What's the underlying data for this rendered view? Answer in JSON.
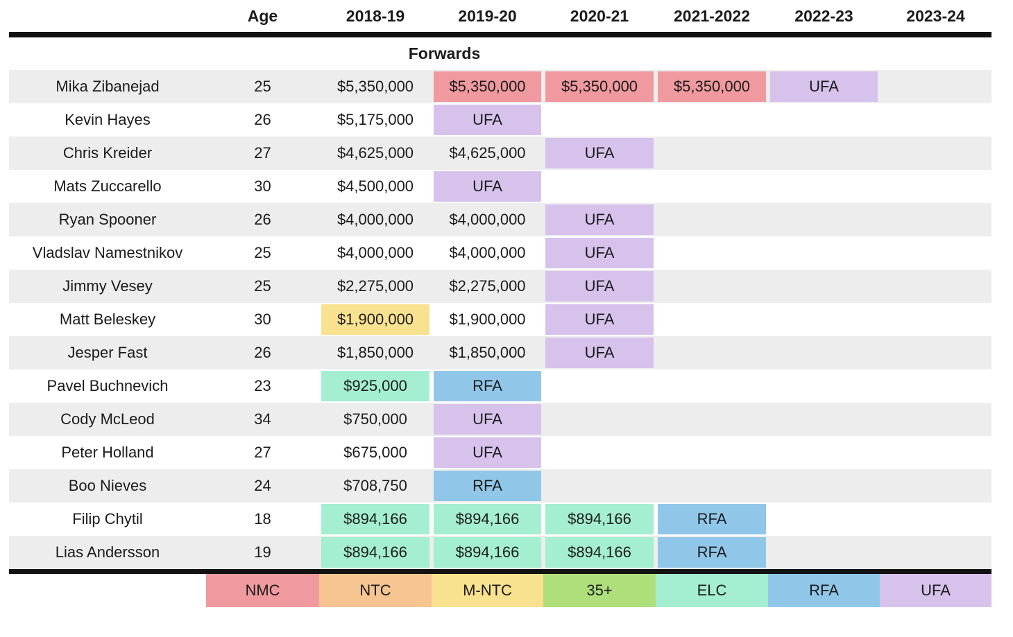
{
  "section": {
    "label": "Forwards"
  },
  "header": {
    "columns": [
      "",
      "Age",
      "2018-19",
      "2019-20",
      "2020-21",
      "2021-2022",
      "2022-23",
      "2023-24"
    ]
  },
  "colors": {
    "nmc": "#f09a9f",
    "ntc": "#f6c591",
    "mntc": "#f9e28f",
    "plus35": "#afdf7b",
    "elc": "#a4eed1",
    "rfa": "#90c7e9",
    "ufa": "#d7c2ec",
    "row_alt": "#ededed",
    "line": "#121212"
  },
  "legend": [
    {
      "label": "NMC",
      "type": "nmc"
    },
    {
      "label": "NTC",
      "type": "ntc"
    },
    {
      "label": "M-NTC",
      "type": "mntc"
    },
    {
      "label": "35+",
      "type": "plus35"
    },
    {
      "label": "ELC",
      "type": "elc"
    },
    {
      "label": "RFA",
      "type": "rfa"
    },
    {
      "label": "UFA",
      "type": "ufa"
    }
  ],
  "players": [
    {
      "name": "Mika Zibanejad",
      "age": "25",
      "years": [
        {
          "text": "$5,350,000"
        },
        {
          "text": "$5,350,000",
          "type": "nmc"
        },
        {
          "text": "$5,350,000",
          "type": "nmc"
        },
        {
          "text": "$5,350,000",
          "type": "nmc"
        },
        {
          "text": "UFA",
          "type": "ufa"
        },
        {}
      ]
    },
    {
      "name": "Kevin Hayes",
      "age": "26",
      "years": [
        {
          "text": "$5,175,000"
        },
        {
          "text": "UFA",
          "type": "ufa"
        },
        {},
        {},
        {},
        {}
      ]
    },
    {
      "name": "Chris Kreider",
      "age": "27",
      "years": [
        {
          "text": "$4,625,000"
        },
        {
          "text": "$4,625,000"
        },
        {
          "text": "UFA",
          "type": "ufa"
        },
        {},
        {},
        {}
      ]
    },
    {
      "name": "Mats Zuccarello",
      "age": "30",
      "years": [
        {
          "text": "$4,500,000"
        },
        {
          "text": "UFA",
          "type": "ufa"
        },
        {},
        {},
        {},
        {}
      ]
    },
    {
      "name": "Ryan Spooner",
      "age": "26",
      "years": [
        {
          "text": "$4,000,000"
        },
        {
          "text": "$4,000,000"
        },
        {
          "text": "UFA",
          "type": "ufa"
        },
        {},
        {},
        {}
      ]
    },
    {
      "name": "Vladslav Namestnikov",
      "age": "25",
      "years": [
        {
          "text": "$4,000,000"
        },
        {
          "text": "$4,000,000"
        },
        {
          "text": "UFA",
          "type": "ufa"
        },
        {},
        {},
        {}
      ]
    },
    {
      "name": "Jimmy Vesey",
      "age": "25",
      "years": [
        {
          "text": "$2,275,000"
        },
        {
          "text": "$2,275,000"
        },
        {
          "text": "UFA",
          "type": "ufa"
        },
        {},
        {},
        {}
      ]
    },
    {
      "name": "Matt Beleskey",
      "age": "30",
      "years": [
        {
          "text": "$1,900,000",
          "type": "mntc"
        },
        {
          "text": "$1,900,000"
        },
        {
          "text": "UFA",
          "type": "ufa"
        },
        {},
        {},
        {}
      ]
    },
    {
      "name": "Jesper Fast",
      "age": "26",
      "years": [
        {
          "text": "$1,850,000"
        },
        {
          "text": "$1,850,000"
        },
        {
          "text": "UFA",
          "type": "ufa"
        },
        {},
        {},
        {}
      ]
    },
    {
      "name": "Pavel Buchnevich",
      "age": "23",
      "years": [
        {
          "text": "$925,000",
          "type": "elc"
        },
        {
          "text": "RFA",
          "type": "rfa"
        },
        {},
        {},
        {},
        {}
      ]
    },
    {
      "name": "Cody McLeod",
      "age": "34",
      "years": [
        {
          "text": "$750,000"
        },
        {
          "text": "UFA",
          "type": "ufa"
        },
        {},
        {},
        {},
        {}
      ]
    },
    {
      "name": "Peter Holland",
      "age": "27",
      "years": [
        {
          "text": "$675,000"
        },
        {
          "text": "UFA",
          "type": "ufa"
        },
        {},
        {},
        {},
        {}
      ]
    },
    {
      "name": "Boo Nieves",
      "age": "24",
      "years": [
        {
          "text": "$708,750"
        },
        {
          "text": "RFA",
          "type": "rfa"
        },
        {},
        {},
        {},
        {}
      ]
    },
    {
      "name": "Filip Chytil",
      "age": "18",
      "years": [
        {
          "text": "$894,166",
          "type": "elc"
        },
        {
          "text": "$894,166",
          "type": "elc"
        },
        {
          "text": "$894,166",
          "type": "elc"
        },
        {
          "text": "RFA",
          "type": "rfa"
        },
        {},
        {}
      ]
    },
    {
      "name": "Lias Andersson",
      "age": "19",
      "years": [
        {
          "text": "$894,166",
          "type": "elc"
        },
        {
          "text": "$894,166",
          "type": "elc"
        },
        {
          "text": "$894,166",
          "type": "elc"
        },
        {
          "text": "RFA",
          "type": "rfa"
        },
        {},
        {}
      ]
    }
  ]
}
